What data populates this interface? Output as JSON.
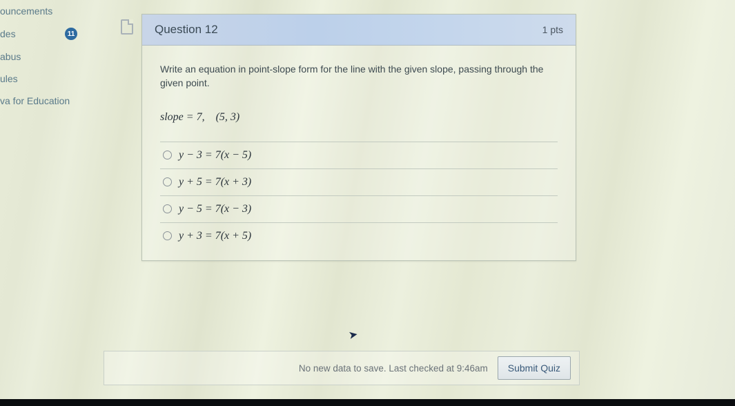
{
  "sidebar": {
    "items": [
      {
        "label": "ouncements"
      },
      {
        "label": "des",
        "badge": "11"
      },
      {
        "label": "abus"
      },
      {
        "label": "ules"
      },
      {
        "label": "va for Education"
      }
    ]
  },
  "question": {
    "title": "Question 12",
    "points": "1 pts",
    "prompt": "Write an equation in point-slope form for the line with the given slope, passing through the given point.",
    "given": "slope = 7, (5, 3)",
    "choices": [
      "y − 3 = 7(x − 5)",
      "y + 5 = 7(x + 3)",
      "y − 5 = 7(x − 3)",
      "y + 3 = 7(x + 5)"
    ]
  },
  "footer": {
    "message": "No new data to save. Last checked at 9:46am",
    "submit": "Submit Quiz"
  }
}
